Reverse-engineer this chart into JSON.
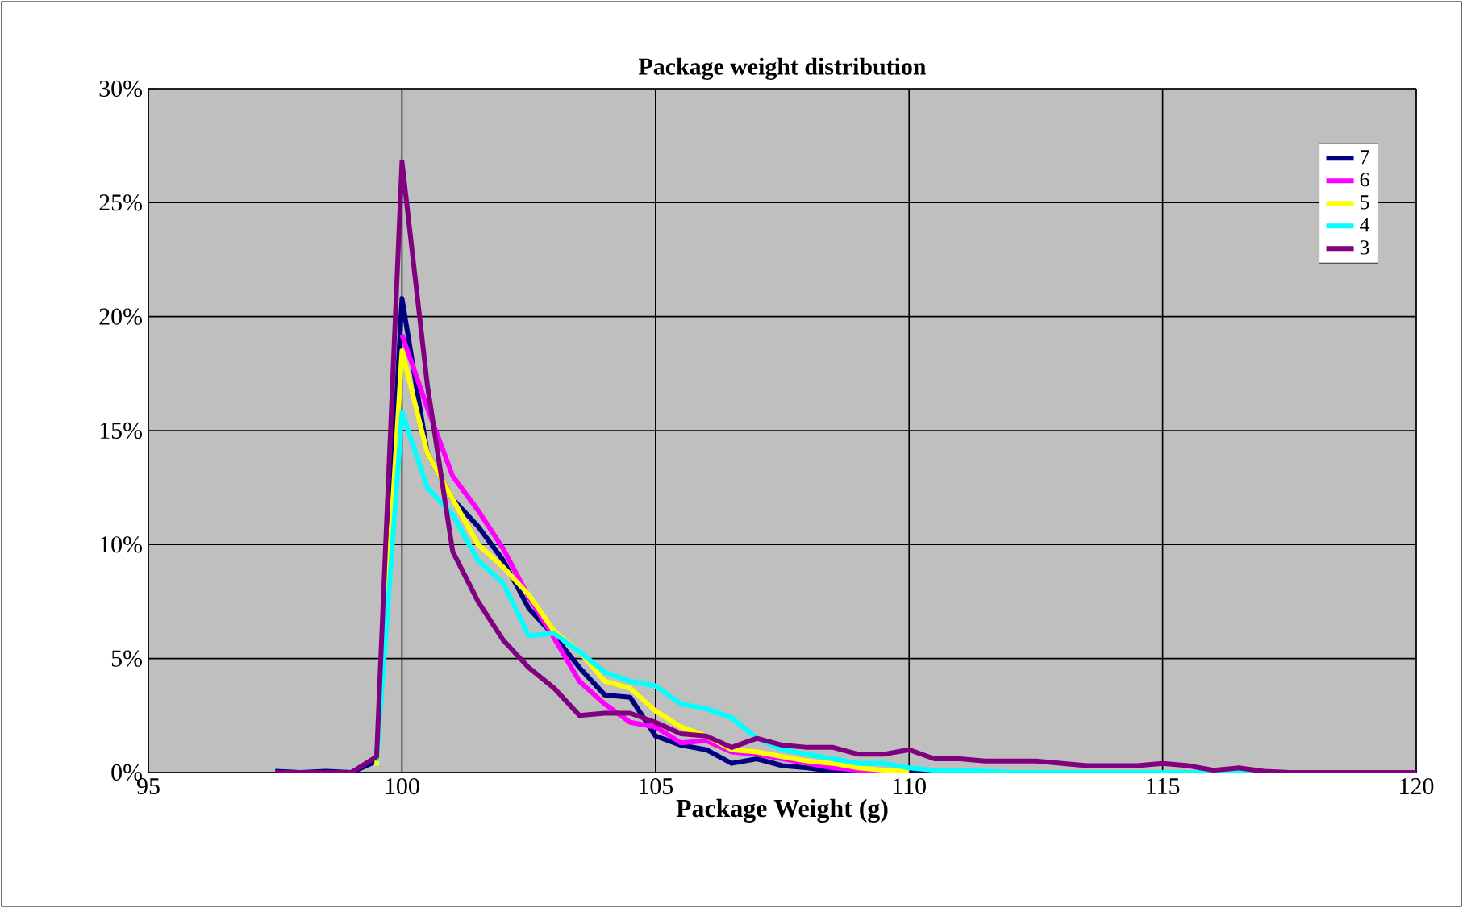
{
  "chart_data": {
    "type": "line",
    "title": "Package weight distribution",
    "xlabel": "Package Weight (g)",
    "x": [
      97.5,
      98,
      98.5,
      99,
      99.5,
      100,
      100.5,
      101,
      101.5,
      102,
      102.5,
      103,
      103.5,
      104,
      104.5,
      105,
      105.5,
      106,
      106.5,
      107,
      107.5,
      108,
      108.5,
      109,
      109.5,
      110,
      110.5,
      111,
      111.5,
      112,
      112.5,
      113,
      113.5,
      114,
      114.5,
      115,
      115.5,
      116,
      116.5,
      117,
      117.5,
      118,
      118.5,
      119,
      119.5,
      120
    ],
    "series": [
      {
        "name": "7",
        "color": "#000080",
        "values": [
          0.05,
          0,
          0.05,
          0,
          0.5,
          20.8,
          14,
          12,
          10.8,
          9.3,
          7.2,
          6.0,
          4.6,
          3.4,
          3.3,
          1.6,
          1.2,
          1.0,
          0.4,
          0.6,
          0.3,
          0.2,
          0.05,
          0,
          0,
          0,
          0,
          0,
          0,
          0,
          0,
          0,
          0,
          0,
          0,
          0,
          0,
          0,
          0,
          0,
          0,
          null,
          null,
          null,
          null,
          null
        ]
      },
      {
        "name": "6",
        "color": "#ff00ff",
        "values": [
          null,
          null,
          null,
          null,
          null,
          19.2,
          16,
          13,
          11.5,
          9.8,
          7.7,
          5.9,
          4.0,
          3.0,
          2.2,
          2.0,
          1.3,
          1.4,
          0.9,
          0.8,
          0.6,
          0.4,
          0.2,
          0.1,
          0.05,
          null,
          null,
          null,
          null,
          null,
          null,
          null,
          null,
          null,
          null,
          null,
          null,
          null,
          null,
          null,
          null,
          null,
          null,
          null,
          null,
          null
        ]
      },
      {
        "name": "5",
        "color": "#ffff00",
        "values": [
          null,
          null,
          null,
          null,
          0.3,
          18.5,
          14,
          12,
          10,
          9,
          7.8,
          6.2,
          5.3,
          4.0,
          3.7,
          2.7,
          2.0,
          1.6,
          1.0,
          0.9,
          0.7,
          0.5,
          0.4,
          0.2,
          0.1,
          0.1,
          null,
          null,
          null,
          null,
          null,
          null,
          null,
          null,
          null,
          null,
          null,
          null,
          null,
          null,
          null,
          null,
          null,
          null,
          null,
          null
        ]
      },
      {
        "name": "4",
        "color": "#00ffff",
        "values": [
          null,
          null,
          null,
          null,
          0.5,
          15.8,
          12.5,
          11.3,
          9.3,
          8.3,
          6.0,
          6.1,
          5.3,
          4.4,
          4.0,
          3.8,
          3.0,
          2.8,
          2.4,
          1.5,
          1.0,
          0.8,
          0.6,
          0.4,
          0.4,
          0.2,
          0.1,
          0.1,
          0.05,
          0,
          0,
          0,
          0,
          0,
          0,
          0,
          0,
          0,
          0,
          0,
          0,
          null,
          null,
          null,
          null,
          null
        ]
      },
      {
        "name": "3",
        "color": "#800080",
        "values": [
          0,
          0,
          0,
          0,
          0.7,
          26.8,
          17,
          9.7,
          7.5,
          5.8,
          4.6,
          3.7,
          2.5,
          2.6,
          2.6,
          2.2,
          1.7,
          1.6,
          1.1,
          1.5,
          1.2,
          1.1,
          1.1,
          0.8,
          0.8,
          1.0,
          0.6,
          0.6,
          0.5,
          0.5,
          0.5,
          0.4,
          0.3,
          0.3,
          0.3,
          0.4,
          0.3,
          0.1,
          0.2,
          0.05,
          0,
          0,
          0,
          0,
          0,
          0
        ]
      }
    ],
    "xlim": [
      95,
      120
    ],
    "xticks": [
      95,
      100,
      105,
      110,
      115,
      120
    ],
    "ylim": [
      0,
      30
    ],
    "yticks": [
      {
        "value": 0,
        "label": "0%"
      },
      {
        "value": 5,
        "label": "5%"
      },
      {
        "value": 10,
        "label": "10%"
      },
      {
        "value": 15,
        "label": "15%"
      },
      {
        "value": 20,
        "label": "20%"
      },
      {
        "value": 25,
        "label": "25%"
      },
      {
        "value": 30,
        "label": "30%"
      }
    ],
    "grid": true,
    "legend": "top right",
    "marker": "none",
    "line_style": "solid"
  }
}
